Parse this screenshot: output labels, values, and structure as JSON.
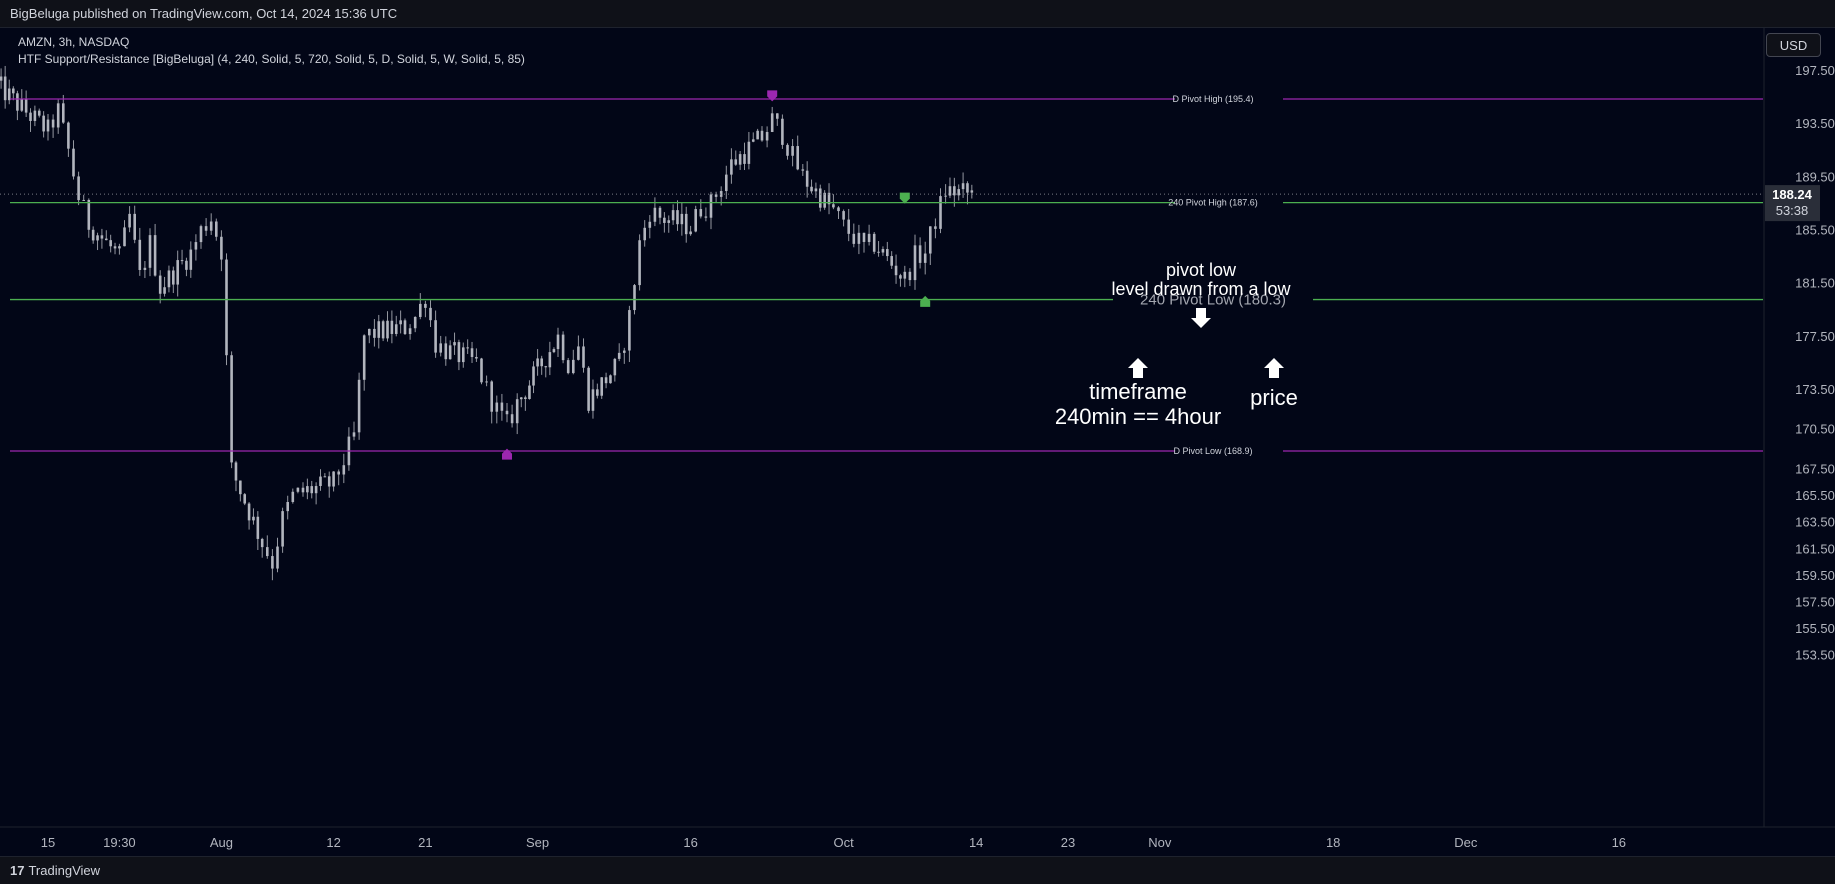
{
  "header": {
    "publish_text": "BigBeluga published on TradingView.com, Oct 14, 2024 15:36 UTC"
  },
  "legend": {
    "symbol_line": "AMZN, 3h, NASDAQ",
    "indicator_line": "HTF Support/Resistance [BigBeluga] (4, 240, Solid, 5, 720, Solid, 5, D, Solid, 5, W, Solid, 5, 85)"
  },
  "currency_button": "USD",
  "footer": {
    "logo_glyph": "17",
    "brand": "TradingView"
  },
  "chart_data": {
    "type": "candlestick",
    "y_ticks": [
      197.5,
      193.5,
      189.5,
      185.5,
      181.5,
      177.5,
      173.5,
      170.5,
      167.5,
      165.5,
      163.5,
      161.5,
      159.5,
      157.5,
      155.5,
      153.5
    ],
    "y_tick_labels": [
      "197.50",
      "193.50",
      "189.50",
      "185.50",
      "181.50",
      "177.50",
      "173.50",
      "170.50",
      "167.50",
      "165.50",
      "163.50",
      "161.50",
      "159.50",
      "157.50",
      "155.50",
      "153.50"
    ],
    "x_tick_labels": [
      {
        "label": "15",
        "date": "2024-07-15"
      },
      {
        "label": "19:30",
        "date": "2024-07-22"
      },
      {
        "label": "Aug",
        "date": "2024-08-01"
      },
      {
        "label": "12",
        "date": "2024-08-12"
      },
      {
        "label": "21",
        "date": "2024-08-21"
      },
      {
        "label": "Sep",
        "date": "2024-09-01"
      },
      {
        "label": "16",
        "date": "2024-09-16"
      },
      {
        "label": "Oct",
        "date": "2024-10-01"
      },
      {
        "label": "14",
        "date": "2024-10-14"
      },
      {
        "label": "23",
        "date": "2024-10-23"
      },
      {
        "label": "Nov",
        "date": "2024-11-01"
      },
      {
        "label": "18",
        "date": "2024-11-18"
      },
      {
        "label": "Dec",
        "date": "2024-12-01"
      },
      {
        "label": "16",
        "date": "2024-12-16"
      }
    ],
    "last_price": {
      "value": 188.24,
      "label": "188.24",
      "countdown": "53:38"
    },
    "levels": [
      {
        "name": "D Pivot High",
        "label": "D Pivot High (195.4)",
        "price": 195.4,
        "color": "#9c27b0"
      },
      {
        "name": "240 Pivot High",
        "label": "240 Pivot High (187.6)",
        "price": 187.6,
        "color": "#4caf50"
      },
      {
        "name": "240 Pivot Low",
        "label": "240 Pivot Low (180.3)",
        "price": 180.3,
        "color": "#4caf50"
      },
      {
        "name": "D Pivot Low",
        "label": "D Pivot Low (168.9)",
        "price": 168.9,
        "color": "#9c27b0"
      }
    ],
    "pivot_markers": [
      {
        "date": "2024-09-24",
        "price": 195.6,
        "color": "#9c27b0",
        "kind": "high"
      },
      {
        "date": "2024-10-07",
        "price": 187.9,
        "color": "#4caf50",
        "kind": "high"
      },
      {
        "date": "2024-10-09",
        "price": 180.2,
        "color": "#4caf50",
        "kind": "low"
      },
      {
        "date": "2024-08-29",
        "price": 168.7,
        "color": "#9c27b0",
        "kind": "low"
      }
    ],
    "annotations": [
      {
        "lines": [
          "pivot low",
          "level drawn from a low"
        ],
        "arrow": "down"
      },
      {
        "lines": [
          "timeframe",
          "240min == 4hour"
        ],
        "arrow": "up"
      },
      {
        "lines": [
          "price"
        ],
        "arrow": "up"
      }
    ],
    "price_path": [
      [
        "2024-07-10",
        196.5
      ],
      [
        "2024-07-12",
        195.0
      ],
      [
        "2024-07-15",
        193.0
      ],
      [
        "2024-07-16",
        194.5
      ],
      [
        "2024-07-17",
        191.5
      ],
      [
        "2024-07-18",
        188.0
      ],
      [
        "2024-07-19",
        186.0
      ],
      [
        "2024-07-22",
        183.5
      ],
      [
        "2024-07-23",
        186.5
      ],
      [
        "2024-07-24",
        182.0
      ],
      [
        "2024-07-25",
        184.5
      ],
      [
        "2024-07-26",
        181.2
      ],
      [
        "2024-07-29",
        183.8
      ],
      [
        "2024-07-30",
        185.5
      ],
      [
        "2024-07-31",
        186.5
      ],
      [
        "2024-08-01",
        184.0
      ],
      [
        "2024-08-02",
        167.5
      ],
      [
        "2024-08-05",
        162.0
      ],
      [
        "2024-08-06",
        160.5
      ],
      [
        "2024-08-07",
        163.8
      ],
      [
        "2024-08-08",
        165.5
      ],
      [
        "2024-08-09",
        165.8
      ],
      [
        "2024-08-12",
        166.5
      ],
      [
        "2024-08-13",
        168.2
      ],
      [
        "2024-08-14",
        170.0
      ],
      [
        "2024-08-15",
        177.5
      ],
      [
        "2024-08-16",
        177.8
      ],
      [
        "2024-08-19",
        178.2
      ],
      [
        "2024-08-20",
        179.0
      ],
      [
        "2024-08-21",
        180.5
      ],
      [
        "2024-08-22",
        177.0
      ],
      [
        "2024-08-23",
        176.5
      ],
      [
        "2024-08-26",
        175.5
      ],
      [
        "2024-08-27",
        173.5
      ],
      [
        "2024-08-28",
        172.0
      ],
      [
        "2024-08-29",
        170.8
      ],
      [
        "2024-08-30",
        172.5
      ],
      [
        "2024-09-03",
        177.5
      ],
      [
        "2024-09-04",
        175.5
      ],
      [
        "2024-09-05",
        176.8
      ],
      [
        "2024-09-06",
        172.8
      ],
      [
        "2024-09-09",
        175.5
      ],
      [
        "2024-09-10",
        179.0
      ],
      [
        "2024-09-11",
        184.5
      ],
      [
        "2024-09-12",
        187.0
      ],
      [
        "2024-09-13",
        186.5
      ],
      [
        "2024-09-16",
        185.8
      ],
      [
        "2024-09-17",
        187.2
      ],
      [
        "2024-09-18",
        187.5
      ],
      [
        "2024-09-19",
        189.0
      ],
      [
        "2024-09-20",
        190.5
      ],
      [
        "2024-09-23",
        192.5
      ],
      [
        "2024-09-24",
        193.8
      ],
      [
        "2024-09-25",
        192.8
      ],
      [
        "2024-09-26",
        191.0
      ],
      [
        "2024-09-27",
        189.5
      ],
      [
        "2024-09-30",
        187.0
      ],
      [
        "2024-10-01",
        185.8
      ],
      [
        "2024-10-02",
        185.0
      ],
      [
        "2024-10-03",
        184.2
      ],
      [
        "2024-10-04",
        184.5
      ],
      [
        "2024-10-07",
        181.8
      ],
      [
        "2024-10-08",
        183.5
      ],
      [
        "2024-10-09",
        183.8
      ],
      [
        "2024-10-10",
        186.3
      ],
      [
        "2024-10-11",
        188.5
      ],
      [
        "2024-10-14",
        188.24
      ]
    ]
  }
}
